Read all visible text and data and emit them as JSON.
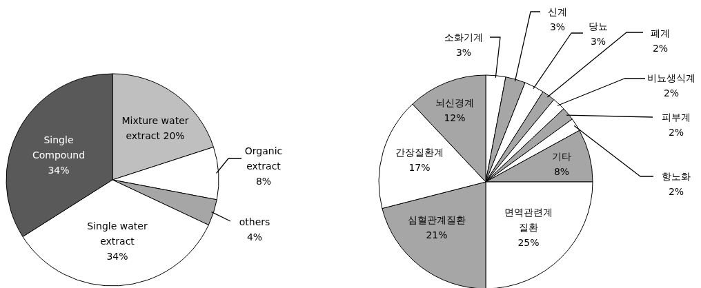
{
  "chart_data": [
    {
      "type": "pie",
      "categories": [
        "Mixture water extract",
        "Organic extract",
        "others",
        "Single water extract",
        "Single Compound"
      ],
      "values": [
        20,
        8,
        4,
        34,
        34
      ],
      "value_labels": [
        "20%",
        "8%",
        "4%",
        "34%",
        "34%"
      ],
      "colors": [
        "#bfbfbf",
        "#ffffff",
        "#a6a6a6",
        "#ffffff",
        "#595959"
      ]
    },
    {
      "type": "pie",
      "categories": [
        "소화기계",
        "신계",
        "당뇨",
        "폐계",
        "비뇨생식계",
        "피부계",
        "항노화",
        "기타",
        "면역관련계 질환",
        "심혈관계질환",
        "간장질환계",
        "뇌신경계"
      ],
      "values": [
        3,
        3,
        3,
        2,
        2,
        2,
        2,
        8,
        25,
        21,
        17,
        12
      ],
      "value_labels": [
        "3%",
        "3%",
        "3%",
        "2%",
        "2%",
        "2%",
        "2%",
        "8%",
        "25%",
        "21%",
        "17%",
        "12%"
      ],
      "colors": [
        "#ffffff",
        "#a6a6a6",
        "#ffffff",
        "#a6a6a6",
        "#ffffff",
        "#a6a6a6",
        "#ffffff",
        "#a6a6a6",
        "#ffffff",
        "#a6a6a6",
        "#ffffff",
        "#a6a6a6"
      ]
    }
  ]
}
